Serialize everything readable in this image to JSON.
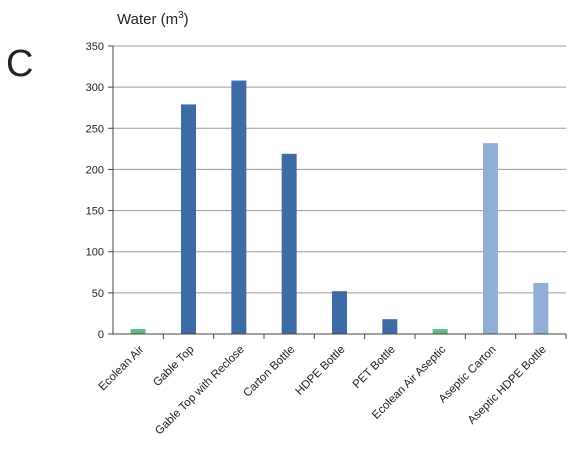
{
  "panel_label": "C",
  "chart_data": {
    "type": "bar",
    "title": "Water (m",
    "title_superscript": "3",
    "title_suffix": ")",
    "categories": [
      "Ecolean Air",
      "Gable Top",
      "Gable Top with Reclose",
      "Carton Bottle",
      "HDPE Bottle",
      "PET Bottle",
      "Ecolean Air Aseptic",
      "Aseptic Carton",
      "Aseptic HDPE Bottle"
    ],
    "values": [
      6,
      279,
      308,
      219,
      52,
      18,
      6,
      232,
      62
    ],
    "bar_colors": [
      "#5dbb85",
      "#3d6ba6",
      "#3d6ba6",
      "#3d6ba6",
      "#3d6ba6",
      "#3d6ba6",
      "#5dbb85",
      "#93aed6",
      "#93aed6"
    ],
    "ylim": [
      0,
      350
    ],
    "yticks": [
      0,
      50,
      100,
      150,
      200,
      250,
      300,
      350
    ],
    "ytick_labels": [
      "0",
      "50",
      "100",
      "150",
      "200",
      "250",
      "300",
      "350"
    ],
    "grid": true,
    "xlabel": "",
    "ylabel": ""
  },
  "colors": {
    "grid": "#9a9a9a",
    "axis": "#444444",
    "text": "#222222"
  }
}
